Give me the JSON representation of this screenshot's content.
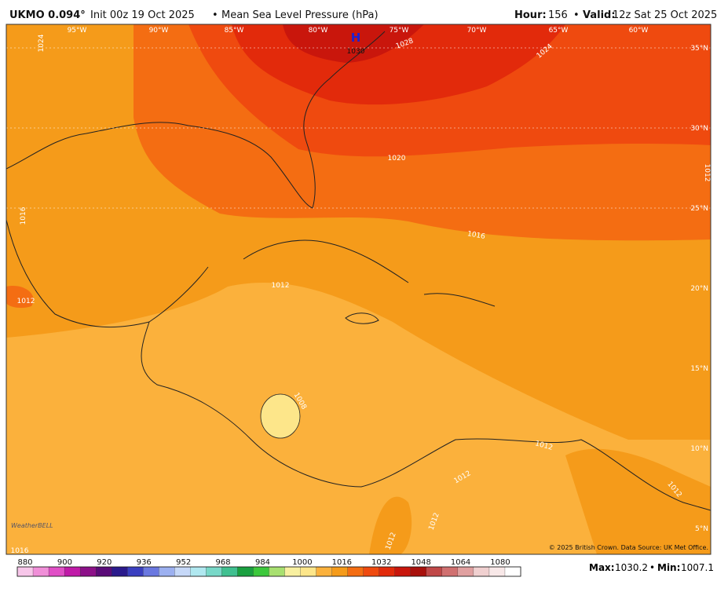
{
  "header": {
    "model": "UKMO 0.094°",
    "run": "Init 00z 19 Oct 2025",
    "sep": "•",
    "product": "Mean Sea Level Pressure (hPa)",
    "hour_label": "Hour:",
    "hour": "156",
    "valid_label": "Valid:",
    "valid": "12z Sat 25 Oct 2025"
  },
  "map": {
    "lon_labels": [
      "95°W",
      "90°W",
      "85°W",
      "80°W",
      "75°W",
      "70°W",
      "65°W",
      "60°W"
    ],
    "lat_labels": [
      "35°N",
      "30°N",
      "25°N",
      "20°N",
      "15°N",
      "10°N",
      "5°N"
    ],
    "high_marker": "H",
    "high_value": "1030",
    "contour_labels": [
      "1028",
      "1024",
      "1020",
      "1016",
      "1012",
      "1008",
      "1012",
      "1016",
      "1012",
      "1012",
      "1012",
      "1012",
      "1012",
      "1016",
      "1024",
      "1012"
    ],
    "credit": "© 2025 British Crown. Data Source: UK Met Office.",
    "logo": "WeatherBELL"
  },
  "colorbar": {
    "ticks": [
      880,
      900,
      920,
      936,
      952,
      968,
      984,
      1000,
      1016,
      1032,
      1048,
      1064,
      1080
    ],
    "colors": [
      "#f7c6e9",
      "#f08fd8",
      "#e04fc6",
      "#c01aa8",
      "#8c1088",
      "#5a0b78",
      "#2a1a8c",
      "#3a3fc0",
      "#6a78e0",
      "#9cb0f0",
      "#c6d8f8",
      "#b0e8f0",
      "#78d8c8",
      "#40c090",
      "#1aa040",
      "#3cc83c",
      "#a8e070",
      "#f8f0a0",
      "#fde68a",
      "#fbb13c",
      "#f59b1a",
      "#f46d12",
      "#ef4a0f",
      "#e22a0b",
      "#c9160c",
      "#a8100c",
      "#c04848",
      "#d07070",
      "#e0a0a0",
      "#f0d0d0",
      "#f8e8e8",
      "#ffffff"
    ]
  },
  "footer": {
    "max_label": "Max:",
    "max": 1030.2,
    "sep": "•",
    "min_label": "Min:",
    "min": 1007.1
  }
}
